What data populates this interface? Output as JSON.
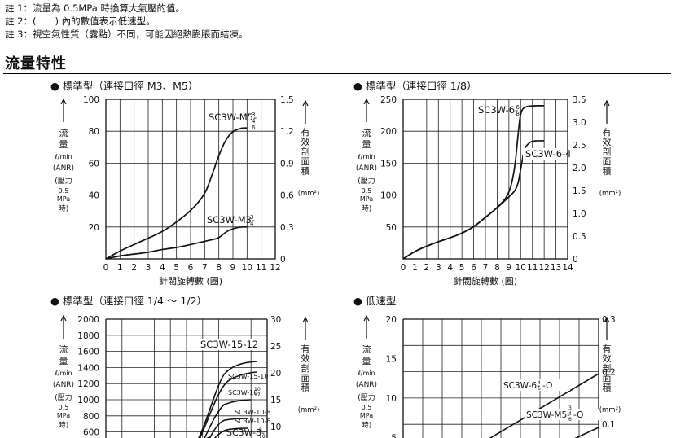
{
  "notes": [
    "註 1：流量為 0.5MPa 時換算大氣壓的值。",
    "註 2：(　　) 內的數值表示低速型。",
    "註 3：視空氣性質（露點）不同，可能因絕熱膨脹而結凍。"
  ],
  "section_title": "流量特性",
  "axis_text": {
    "flow_label": "流量",
    "flow_unit": "ℓ/min",
    "anr": "(ANR)",
    "pressure": "(壓力",
    "pressure_value": "0.5",
    "pressure_unit": "MPa",
    "pressure_end": "時)",
    "area_label": "有效剖面積",
    "area_unit": "(mm²)",
    "x_label": "針閥旋轉數 (圈)"
  },
  "chart_data": [
    {
      "type": "line",
      "title": "● 標準型（連接口徑 M3、M5）",
      "xlabel": "針閥旋轉數 (圈)",
      "ylabel": "流量 ℓ/min (ANR)",
      "y2label": "有效剖面積 (mm²)",
      "xlim": [
        0,
        12
      ],
      "ylim": [
        0,
        100
      ],
      "y2lim": [
        0,
        1.5
      ],
      "x_ticks": [
        0,
        1,
        2,
        3,
        4,
        5,
        6,
        7,
        8,
        9,
        10,
        11,
        12
      ],
      "y_ticks": [
        20,
        40,
        60,
        80,
        100
      ],
      "y2_ticks": [
        "0",
        "0.3",
        "0.6",
        "0.9",
        "1.2",
        "1.5"
      ],
      "grid": true,
      "series": [
        {
          "name": "SC3W-M5-3/4/6",
          "x": [
            0,
            1,
            2,
            3,
            4,
            5,
            6,
            7,
            7.5,
            8,
            8.5,
            9,
            9.3,
            9.6,
            10
          ],
          "y": [
            0,
            5,
            9,
            13,
            17,
            23,
            30,
            40,
            52,
            65,
            75,
            80,
            81,
            82,
            82
          ]
        },
        {
          "name": "SC3W-M3-3/4",
          "x": [
            0,
            1,
            2,
            3,
            4,
            5,
            6,
            7,
            7.5,
            8,
            8.5,
            9,
            9.5,
            10
          ],
          "y": [
            0,
            2,
            3,
            4,
            6,
            7,
            9,
            11,
            12,
            13,
            17,
            19,
            20,
            20
          ]
        }
      ]
    },
    {
      "type": "line",
      "title": "● 標準型（連接口徑 1/8）",
      "xlabel": "針閥旋轉數 (圈)",
      "ylabel": "流量 ℓ/min (ANR)",
      "y2label": "有效剖面積 (mm²)",
      "xlim": [
        0,
        14
      ],
      "ylim": [
        0,
        250
      ],
      "y2lim": [
        0,
        3.5
      ],
      "x_ticks": [
        0,
        1,
        2,
        3,
        4,
        5,
        6,
        7,
        8,
        9,
        10,
        11,
        12,
        13,
        14
      ],
      "y_ticks": [
        50,
        100,
        150,
        200,
        250
      ],
      "y2_ticks": [
        "0",
        "0.5",
        "1.0",
        "1.5",
        "2.0",
        "2.5",
        "3.0",
        "3.5"
      ],
      "grid": true,
      "series": [
        {
          "name": "SC3W-6-6/8",
          "x": [
            0,
            1,
            2,
            3,
            4,
            5,
            6,
            7,
            8,
            9,
            9.5,
            9.8,
            10,
            10.3,
            11,
            12
          ],
          "y": [
            0,
            12,
            20,
            27,
            33,
            40,
            50,
            65,
            80,
            100,
            140,
            200,
            230,
            238,
            240,
            240
          ]
        },
        {
          "name": "SC3W-6-4",
          "x": [
            0,
            1,
            2,
            3,
            4,
            5,
            6,
            7,
            8,
            9,
            9.7,
            10,
            10.3,
            10.6,
            11,
            12
          ],
          "y": [
            0,
            12,
            20,
            27,
            33,
            40,
            50,
            65,
            80,
            97,
            110,
            140,
            172,
            180,
            185,
            185
          ]
        }
      ]
    },
    {
      "type": "line",
      "title": "● 標準型（連接口徑 1/4 ～ 1/2）",
      "ylabel": "流量 ℓ/min (ANR)",
      "y2label": "有效剖面積 (mm²)",
      "ylim": [
        0,
        2000
      ],
      "y2lim": [
        0,
        30
      ],
      "y_ticks": [
        600,
        800,
        1000,
        1200,
        1400,
        1600,
        1800,
        2000
      ],
      "y2_ticks": [
        "10",
        "15",
        "20",
        "25",
        "30"
      ],
      "grid": true,
      "series": [
        {
          "name": "SC3W-15-12"
        },
        {
          "name": "SC3W-15-10"
        },
        {
          "name": "SC3W-10-10/12"
        },
        {
          "name": "SC3W-10-8"
        },
        {
          "name": "SC3W-10-6"
        },
        {
          "name": "SC3W-8-8/10"
        }
      ]
    },
    {
      "type": "line",
      "title": "● 低速型",
      "ylabel": "流量 ℓ/min (ANR)",
      "y2label": "有效剖面積 (mm²)",
      "ylim": [
        0,
        20
      ],
      "y2lim": [
        0,
        0.3
      ],
      "y_ticks": [
        5,
        10,
        15,
        20
      ],
      "y2_ticks": [
        "0.1",
        "0.2",
        "0.3"
      ],
      "grid": true,
      "series": [
        {
          "name": "SC3W-6-4/6-O"
        },
        {
          "name": "SC3W-M5-3/4/6-O"
        }
      ]
    }
  ]
}
